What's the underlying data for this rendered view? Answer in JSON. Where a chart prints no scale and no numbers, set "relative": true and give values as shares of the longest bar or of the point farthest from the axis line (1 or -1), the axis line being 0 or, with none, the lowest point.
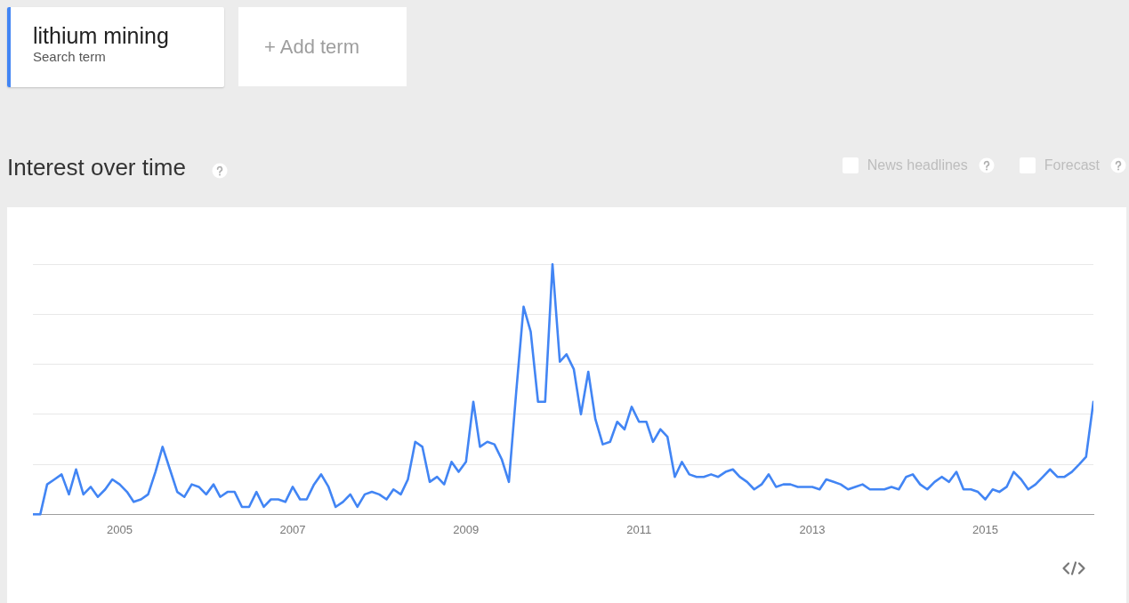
{
  "chart_data": {
    "type": "line",
    "title": "Interest over time",
    "legend_title": "Search term",
    "legend": "top left",
    "grid": "y",
    "relative": true,
    "annotations": [
      "+ Add term",
      "News headlines",
      "Forecast"
    ],
    "xlim": [
      "2004-01",
      "2016-04"
    ],
    "xticks": [
      "2005",
      "2007",
      "2009",
      "2011",
      "2013",
      "2015"
    ],
    "x": [
      "2004-01",
      "2004-02",
      "2004-03",
      "2004-04",
      "2004-05",
      "2004-06",
      "2004-07",
      "2004-08",
      "2004-09",
      "2004-10",
      "2004-11",
      "2004-12",
      "2005-01",
      "2005-02",
      "2005-03",
      "2005-04",
      "2005-05",
      "2005-06",
      "2005-07",
      "2005-08",
      "2005-09",
      "2005-10",
      "2005-11",
      "2005-12",
      "2006-01",
      "2006-02",
      "2006-03",
      "2006-04",
      "2006-05",
      "2006-06",
      "2006-07",
      "2006-08",
      "2006-09",
      "2006-10",
      "2006-11",
      "2006-12",
      "2007-01",
      "2007-02",
      "2007-03",
      "2007-04",
      "2007-05",
      "2007-06",
      "2007-07",
      "2007-08",
      "2007-09",
      "2007-10",
      "2007-11",
      "2007-12",
      "2008-01",
      "2008-02",
      "2008-03",
      "2008-04",
      "2008-05",
      "2008-06",
      "2008-07",
      "2008-08",
      "2008-09",
      "2008-10",
      "2008-11",
      "2008-12",
      "2009-01",
      "2009-02",
      "2009-03",
      "2009-04",
      "2009-05",
      "2009-06",
      "2009-07",
      "2009-08",
      "2009-09",
      "2009-10",
      "2009-11",
      "2009-12",
      "2010-01",
      "2010-02",
      "2010-03",
      "2010-04",
      "2010-05",
      "2010-06",
      "2010-07",
      "2010-08",
      "2010-09",
      "2010-10",
      "2010-11",
      "2010-12",
      "2011-01",
      "2011-02",
      "2011-03",
      "2011-04",
      "2011-05",
      "2011-06",
      "2011-07",
      "2011-08",
      "2011-09",
      "2011-10",
      "2011-11",
      "2011-12",
      "2012-01",
      "2012-02",
      "2012-03",
      "2012-04",
      "2012-05",
      "2012-06",
      "2012-07",
      "2012-08",
      "2012-09",
      "2012-10",
      "2012-11",
      "2012-12",
      "2013-01",
      "2013-02",
      "2013-03",
      "2013-04",
      "2013-05",
      "2013-06",
      "2013-07",
      "2013-08",
      "2013-09",
      "2013-10",
      "2013-11",
      "2013-12",
      "2014-01",
      "2014-02",
      "2014-03",
      "2014-04",
      "2014-05",
      "2014-06",
      "2014-07",
      "2014-08",
      "2014-09",
      "2014-10",
      "2014-11",
      "2014-12",
      "2015-01",
      "2015-02",
      "2015-03",
      "2015-04",
      "2015-05",
      "2015-06",
      "2015-07",
      "2015-08",
      "2015-09",
      "2015-10",
      "2015-11",
      "2015-12",
      "2016-01",
      "2016-02",
      "2016-03",
      "2016-04"
    ],
    "series": [
      {
        "name": "lithium mining",
        "color": "#4285f4",
        "values": [
          0,
          0,
          0.12,
          0.14,
          0.16,
          0.08,
          0.18,
          0.08,
          0.11,
          0.07,
          0.1,
          0.14,
          0.12,
          0.09,
          0.05,
          0.06,
          0.08,
          0.17,
          0.27,
          0.18,
          0.09,
          0.07,
          0.12,
          0.11,
          0.08,
          0.12,
          0.07,
          0.09,
          0.09,
          0.03,
          0.03,
          0.09,
          0.03,
          0.06,
          0.06,
          0.05,
          0.11,
          0.06,
          0.06,
          0.12,
          0.16,
          0.11,
          0.03,
          0.05,
          0.08,
          0.03,
          0.08,
          0.09,
          0.08,
          0.06,
          0.1,
          0.08,
          0.14,
          0.29,
          0.27,
          0.13,
          0.15,
          0.12,
          0.21,
          0.17,
          0.21,
          0.45,
          0.27,
          0.29,
          0.28,
          0.22,
          0.13,
          0.49,
          0.83,
          0.73,
          0.45,
          0.45,
          1,
          0.61,
          0.64,
          0.58,
          0.4,
          0.57,
          0.38,
          0.28,
          0.29,
          0.37,
          0.34,
          0.43,
          0.37,
          0.37,
          0.29,
          0.34,
          0.31,
          0.15,
          0.21,
          0.16,
          0.15,
          0.15,
          0.16,
          0.15,
          0.17,
          0.18,
          0.15,
          0.13,
          0.1,
          0.12,
          0.16,
          0.11,
          0.12,
          0.12,
          0.11,
          0.11,
          0.11,
          0.1,
          0.14,
          0.13,
          0.12,
          0.1,
          0.11,
          0.12,
          0.1,
          0.1,
          0.1,
          0.11,
          0.1,
          0.15,
          0.16,
          0.12,
          0.1,
          0.13,
          0.15,
          0.13,
          0.17,
          0.1,
          0.1,
          0.09,
          0.06,
          0.1,
          0.09,
          0.11,
          0.17,
          0.14,
          0.1,
          0.12,
          0.15,
          0.18,
          0.15,
          0.15,
          0.17,
          0.2,
          0.23,
          0.45
        ]
      }
    ]
  }
}
